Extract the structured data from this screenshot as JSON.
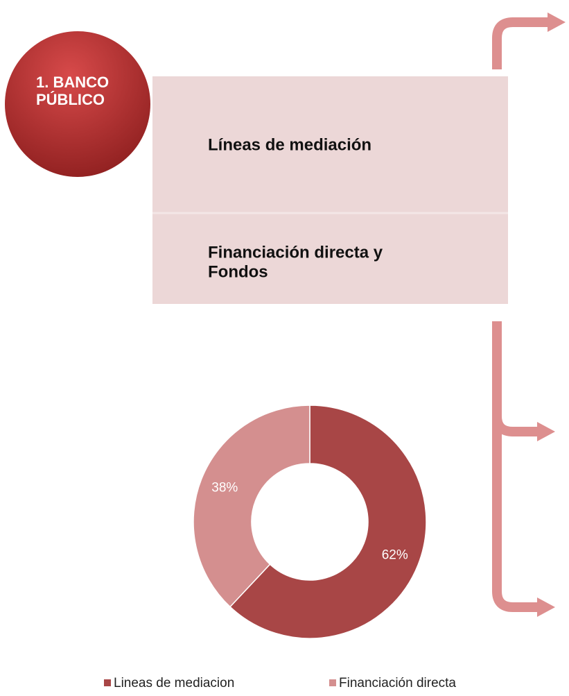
{
  "badge": {
    "lines": [
      "1. BANCO",
      "PÚBLICO"
    ]
  },
  "box": {
    "items": [
      {
        "lines": [
          "Líneas de mediación"
        ]
      },
      {
        "lines": [
          "Financiación directa y",
          "Fondos"
        ]
      }
    ]
  },
  "chart_data": {
    "type": "donut",
    "categories": [
      "Lineas de mediacion",
      "Financiación directa"
    ],
    "values": [
      62,
      38
    ],
    "value_labels": [
      "62%",
      "38%"
    ],
    "colors": [
      "#a84646",
      "#d48f8f"
    ]
  }
}
